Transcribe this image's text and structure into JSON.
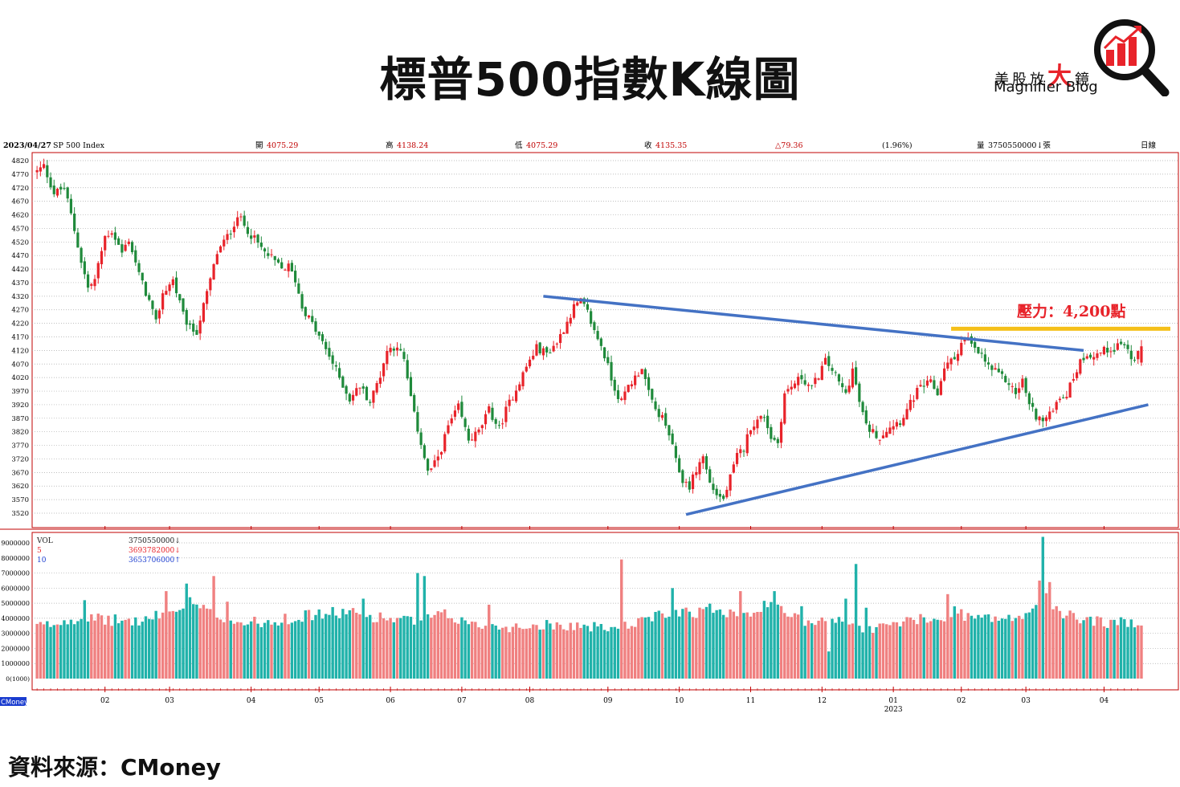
{
  "header": {
    "title": "標普500指數K線圖",
    "logo_zh_1": "美股放",
    "logo_zh_big": "大",
    "logo_zh_2": "鏡",
    "logo_en": "Magnifier Blog",
    "source": "資料來源：CMoney"
  },
  "info_bar": {
    "date": "2023/04/27",
    "symbol": "SP 500 Index",
    "open_label": "開",
    "open": "4075.29",
    "high_label": "高",
    "high": "4138.24",
    "low_label": "低",
    "low": "4075.29",
    "close_label": "收",
    "close": "4135.35",
    "change": "△79.36",
    "change_pct": "(1.96%)",
    "volume_label": "量",
    "volume": "3750550000↓張",
    "period": "日線"
  },
  "volume_legend": [
    {
      "name": "VOL",
      "value": "3750550000↓"
    },
    {
      "name": "5",
      "value": "3693782000↓"
    },
    {
      "name": "10",
      "value": "3653706000↑"
    }
  ],
  "annotation": {
    "resistance": "壓力：4,200點"
  },
  "colors": {
    "up": "#e8232a",
    "down": "#1f8a3b",
    "vol_up": "#f08080",
    "vol_down": "#20b2aa",
    "trend": "#4472c4",
    "resistance": "#f5c01a",
    "frame": "#c00000"
  },
  "footer_tag": "CMoney",
  "chart_data": {
    "type": "candlestick",
    "period": "daily",
    "ylim": [
      3490,
      4830
    ],
    "price_ticks": [
      4820,
      4770,
      4720,
      4670,
      4620,
      4570,
      4520,
      4470,
      4420,
      4370,
      4320,
      4270,
      4220,
      4170,
      4120,
      4070,
      4020,
      3970,
      3920,
      3870,
      3820,
      3770,
      3720,
      3670,
      3620,
      3570,
      3520
    ],
    "volume_ticks": [
      "9000000",
      "8000000",
      "7000000",
      "6000000",
      "5000000",
      "4000000",
      "3000000",
      "2000000",
      "1000000"
    ],
    "volume_zero_label": "0(1000)",
    "volume_ylim": [
      0,
      9500000
    ],
    "x_months": [
      "02",
      "03",
      "04",
      "05",
      "06",
      "07",
      "08",
      "09",
      "10",
      "11",
      "12",
      "01",
      "02",
      "03",
      "04"
    ],
    "x_month_positions_days": [
      20,
      39,
      63,
      83,
      104,
      125,
      145,
      168,
      189,
      210,
      231,
      252,
      272,
      291,
      314
    ],
    "x_year_label": "2023",
    "x_year_month_index": 11,
    "num_days": 330,
    "price_anchors": [
      [
        0,
        4780
      ],
      [
        2,
        4800
      ],
      [
        5,
        4700
      ],
      [
        8,
        4720
      ],
      [
        10,
        4620
      ],
      [
        13,
        4450
      ],
      [
        15,
        4350
      ],
      [
        17,
        4380
      ],
      [
        20,
        4540
      ],
      [
        22,
        4560
      ],
      [
        25,
        4480
      ],
      [
        27,
        4530
      ],
      [
        30,
        4400
      ],
      [
        33,
        4300
      ],
      [
        35,
        4220
      ],
      [
        37,
        4330
      ],
      [
        40,
        4380
      ],
      [
        43,
        4250
      ],
      [
        45,
        4200
      ],
      [
        47,
        4190
      ],
      [
        50,
        4330
      ],
      [
        53,
        4480
      ],
      [
        57,
        4560
      ],
      [
        59,
        4620
      ],
      [
        61,
        4580
      ],
      [
        64,
        4530
      ],
      [
        67,
        4480
      ],
      [
        69,
        4460
      ],
      [
        72,
        4420
      ],
      [
        74,
        4430
      ],
      [
        76,
        4380
      ],
      [
        78,
        4280
      ],
      [
        80,
        4240
      ],
      [
        83,
        4170
      ],
      [
        86,
        4100
      ],
      [
        89,
        4020
      ],
      [
        92,
        3940
      ],
      [
        95,
        3990
      ],
      [
        98,
        3930
      ],
      [
        101,
        4030
      ],
      [
        103,
        4120
      ],
      [
        106,
        4140
      ],
      [
        108,
        4080
      ],
      [
        111,
        3880
      ],
      [
        113,
        3780
      ],
      [
        115,
        3670
      ],
      [
        117,
        3700
      ],
      [
        119,
        3760
      ],
      [
        121,
        3840
      ],
      [
        124,
        3910
      ],
      [
        127,
        3790
      ],
      [
        130,
        3820
      ],
      [
        133,
        3900
      ],
      [
        136,
        3830
      ],
      [
        138,
        3900
      ],
      [
        141,
        3980
      ],
      [
        144,
        4060
      ],
      [
        147,
        4130
      ],
      [
        150,
        4110
      ],
      [
        153,
        4150
      ],
      [
        155,
        4200
      ],
      [
        158,
        4280
      ],
      [
        160,
        4300
      ],
      [
        162,
        4260
      ],
      [
        164,
        4190
      ],
      [
        166,
        4140
      ],
      [
        168,
        4060
      ],
      [
        170,
        3980
      ],
      [
        172,
        3930
      ],
      [
        174,
        3990
      ],
      [
        176,
        4020
      ],
      [
        178,
        4060
      ],
      [
        180,
        3960
      ],
      [
        182,
        3900
      ],
      [
        184,
        3870
      ],
      [
        186,
        3810
      ],
      [
        188,
        3710
      ],
      [
        190,
        3640
      ],
      [
        192,
        3620
      ],
      [
        194,
        3680
      ],
      [
        196,
        3730
      ],
      [
        198,
        3630
      ],
      [
        200,
        3590
      ],
      [
        202,
        3570
      ],
      [
        204,
        3650
      ],
      [
        206,
        3730
      ],
      [
        208,
        3760
      ],
      [
        210,
        3840
      ],
      [
        212,
        3860
      ],
      [
        214,
        3880
      ],
      [
        216,
        3800
      ],
      [
        218,
        3780
      ],
      [
        220,
        3960
      ],
      [
        223,
        4000
      ],
      [
        225,
        4020
      ],
      [
        228,
        3980
      ],
      [
        230,
        4030
      ],
      [
        232,
        4080
      ],
      [
        234,
        4050
      ],
      [
        236,
        4000
      ],
      [
        238,
        3960
      ],
      [
        240,
        4050
      ],
      [
        242,
        3930
      ],
      [
        244,
        3840
      ],
      [
        246,
        3820
      ],
      [
        248,
        3800
      ],
      [
        250,
        3830
      ],
      [
        252,
        3850
      ],
      [
        254,
        3860
      ],
      [
        256,
        3900
      ],
      [
        259,
        3970
      ],
      [
        261,
        3990
      ],
      [
        263,
        4000
      ],
      [
        265,
        3960
      ],
      [
        267,
        4060
      ],
      [
        270,
        4090
      ],
      [
        272,
        4150
      ],
      [
        274,
        4160
      ],
      [
        276,
        4120
      ],
      [
        278,
        4100
      ],
      [
        280,
        4060
      ],
      [
        283,
        4030
      ],
      [
        286,
        4000
      ],
      [
        288,
        3960
      ],
      [
        290,
        4010
      ],
      [
        292,
        3920
      ],
      [
        294,
        3880
      ],
      [
        296,
        3860
      ],
      [
        298,
        3880
      ],
      [
        300,
        3940
      ],
      [
        303,
        3960
      ],
      [
        305,
        4020
      ],
      [
        307,
        4080
      ],
      [
        309,
        4110
      ],
      [
        311,
        4100
      ],
      [
        314,
        4120
      ],
      [
        317,
        4130
      ],
      [
        319,
        4150
      ],
      [
        321,
        4120
      ],
      [
        323,
        4070
      ],
      [
        324,
        4105
      ],
      [
        325,
        4135
      ]
    ],
    "volume_anchors": [
      [
        0,
        3.5
      ],
      [
        5,
        3.6
      ],
      [
        10,
        4.0
      ],
      [
        20,
        3.9
      ],
      [
        30,
        3.8
      ],
      [
        40,
        4.4
      ],
      [
        45,
        5.0
      ],
      [
        50,
        4.4
      ],
      [
        60,
        3.7
      ],
      [
        70,
        3.8
      ],
      [
        80,
        4.2
      ],
      [
        90,
        4.4
      ],
      [
        100,
        4.1
      ],
      [
        110,
        3.8
      ],
      [
        120,
        4.2
      ],
      [
        130,
        3.5
      ],
      [
        140,
        3.4
      ],
      [
        150,
        3.6
      ],
      [
        160,
        3.5
      ],
      [
        170,
        3.3
      ],
      [
        180,
        3.9
      ],
      [
        185,
        4.3
      ],
      [
        190,
        4.6
      ],
      [
        195,
        4.4
      ],
      [
        200,
        4.7
      ],
      [
        205,
        4.4
      ],
      [
        210,
        4.5
      ],
      [
        215,
        4.8
      ],
      [
        220,
        4.4
      ],
      [
        225,
        3.8
      ],
      [
        230,
        3.9
      ],
      [
        235,
        4.2
      ],
      [
        240,
        3.5
      ],
      [
        245,
        3.3
      ],
      [
        250,
        3.5
      ],
      [
        255,
        3.8
      ],
      [
        260,
        3.9
      ],
      [
        265,
        3.8
      ],
      [
        270,
        4.5
      ],
      [
        275,
        4.1
      ],
      [
        280,
        4.0
      ],
      [
        285,
        4.0
      ],
      [
        290,
        3.9
      ],
      [
        295,
        5.4
      ],
      [
        297,
        5.8
      ],
      [
        300,
        4.4
      ],
      [
        305,
        4.1
      ],
      [
        310,
        3.9
      ],
      [
        315,
        3.7
      ],
      [
        320,
        3.7
      ],
      [
        325,
        3.8
      ]
    ],
    "volume_spikes": [
      [
        14,
        5.2
      ],
      [
        38,
        5.8
      ],
      [
        44,
        6.3
      ],
      [
        52,
        6.8
      ],
      [
        56,
        5.1
      ],
      [
        73,
        4.3
      ],
      [
        96,
        5.3
      ],
      [
        112,
        7.0
      ],
      [
        114,
        6.8
      ],
      [
        133,
        4.9
      ],
      [
        172,
        7.9
      ],
      [
        187,
        6.0
      ],
      [
        207,
        5.8
      ],
      [
        217,
        5.8
      ],
      [
        225,
        4.8
      ],
      [
        235,
        3.7
      ],
      [
        238,
        5.3
      ],
      [
        241,
        7.6
      ],
      [
        244,
        4.7
      ],
      [
        268,
        5.6
      ],
      [
        295,
        6.5
      ],
      [
        296,
        9.4
      ],
      [
        298,
        6.4
      ]
    ],
    "volume_dips": [
      [
        233,
        1.8
      ]
    ],
    "trendlines": [
      {
        "name": "upper",
        "from": [
          149,
          4320
        ],
        "to": [
          308,
          4120
        ]
      },
      {
        "name": "lower",
        "from": [
          191,
          3515
        ],
        "to": [
          327,
          3920
        ]
      },
      {
        "name": "resistance",
        "from": [
          269,
          4200
        ],
        "to": [
          330,
          4200
        ]
      }
    ]
  }
}
